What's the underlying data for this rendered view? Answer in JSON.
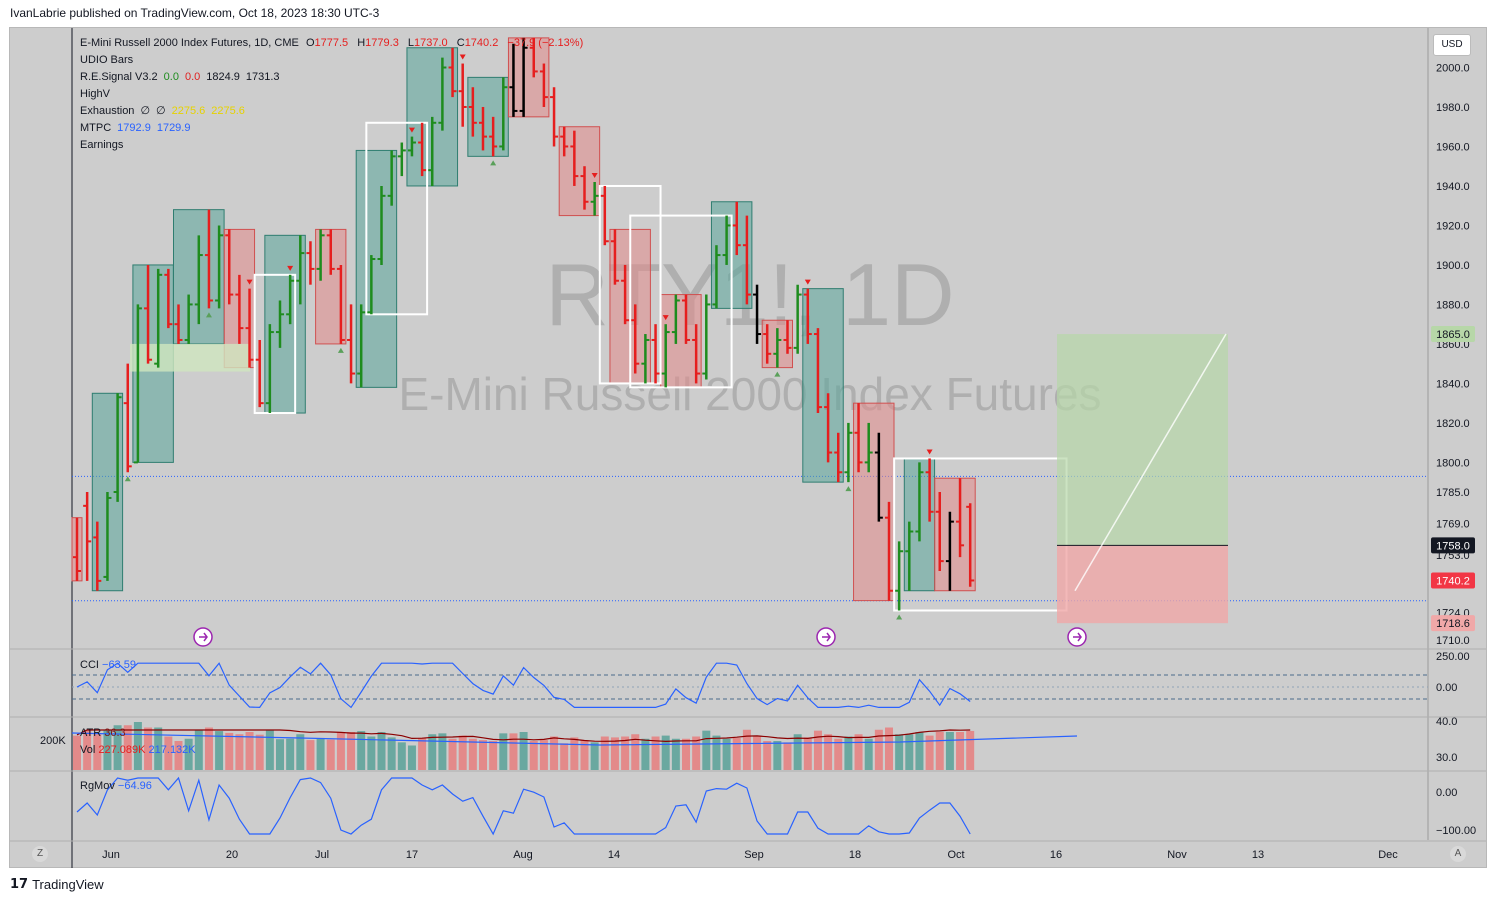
{
  "header": {
    "publisher_line": "IvanLabrie published on TradingView.com, Oct 18, 2023 18:30 UTC-3"
  },
  "footer": {
    "brand": "TradingView",
    "logo_glyph": "17"
  },
  "toolbar": {
    "currency_button": "USD",
    "left_corner": "Z",
    "right_corner": "A"
  },
  "legend": {
    "symbol": "E-Mini Russell 2000 Index Futures, 1D, CME",
    "ohlc": {
      "o_label": "O",
      "o": "1777.5",
      "h_label": "H",
      "h": "1779.3",
      "l_label": "L",
      "l": "1737.0",
      "c_label": "C",
      "c": "1740.2",
      "change": "−37.9 (−2.13%)"
    },
    "indicators": [
      {
        "name": "UDIO Bars",
        "values": []
      },
      {
        "name": "R.E.Signal V3.2",
        "values": [
          {
            "v": "0.0",
            "color": "#1e8c1e"
          },
          {
            "v": "0.0",
            "color": "#e02020"
          },
          {
            "v": "1824.9",
            "color": "#131722"
          },
          {
            "v": "1731.3",
            "color": "#131722"
          }
        ]
      },
      {
        "name": "HighV",
        "values": []
      },
      {
        "name": "Exhaustion",
        "values": [
          {
            "v": "∅",
            "color": "#131722"
          },
          {
            "v": "∅",
            "color": "#131722"
          },
          {
            "v": "2275.6",
            "color": "#e6d200"
          },
          {
            "v": "2275.6",
            "color": "#e6d200"
          }
        ]
      },
      {
        "name": "MTPC",
        "values": [
          {
            "v": "1792.9",
            "color": "#2962ff"
          },
          {
            "v": "1729.9",
            "color": "#2962ff"
          }
        ]
      },
      {
        "name": "Earnings",
        "values": []
      }
    ]
  },
  "watermark": {
    "ticker": "RTY1!, 1D",
    "name": "E-Mini Russell 2000 Index Futures"
  },
  "panes": {
    "cci": {
      "label": "CCI",
      "value": "−63.59",
      "ticks": [
        "250.00",
        "0.00"
      ]
    },
    "atr": {
      "label": "ATR",
      "value": "36.3",
      "ticks": [
        "40.0",
        "30.0"
      ]
    },
    "vol": {
      "label": "Vol",
      "value1": "227.089K",
      "value2": "217.132K",
      "left_tick": "200K"
    },
    "rgmov": {
      "label": "RgMov",
      "value": "−64.96",
      "ticks": [
        "0.00",
        "−100.00"
      ]
    }
  },
  "colors": {
    "up": "#1e8c1e",
    "down": "#e61e1e",
    "neutral": "#000000",
    "green_box": "#5aa59a",
    "red_box": "#e38a8a",
    "price_label": "#f23645"
  },
  "chart_data": {
    "type": "ohlc",
    "symbol": "RTY1!",
    "timeframe": "1D",
    "x_tick_labels": [
      "Jun",
      "20",
      "Jul",
      "17",
      "Aug",
      "14",
      "Sep",
      "18",
      "Oct",
      "16",
      "Nov",
      "13",
      "Dec"
    ],
    "y_tick_labels": [
      "2000.0",
      "1980.0",
      "1960.0",
      "1940.0",
      "1920.0",
      "1900.0",
      "1880.0",
      "1860.0",
      "1840.0",
      "1820.0",
      "1800.0",
      "1785.0",
      "1769.0",
      "1753.0",
      "1724.0",
      "1710.0"
    ],
    "ylim": [
      1706,
      2020
    ],
    "price_labels": [
      {
        "value": "1865.0",
        "bg": "#b7d7a8",
        "fg": "#131722"
      },
      {
        "value": "1758.0",
        "bg": "#131722",
        "fg": "#ffffff"
      },
      {
        "value": "1740.2",
        "bg": "#f23645",
        "fg": "#ffffff"
      },
      {
        "value": "1718.6",
        "bg": "#f0a8a8",
        "fg": "#131722"
      }
    ],
    "bars": [
      [
        1752,
        1772,
        1740,
        1745
      ],
      [
        1778,
        1785,
        1740,
        1760
      ],
      [
        1762,
        1770,
        1735,
        1740
      ],
      [
        1742,
        1785,
        1740,
        1782
      ],
      [
        1785,
        1835,
        1780,
        1833
      ],
      [
        1830,
        1850,
        1795,
        1798
      ],
      [
        1800,
        1880,
        1800,
        1878
      ],
      [
        1878,
        1900,
        1850,
        1852
      ],
      [
        1850,
        1898,
        1848,
        1895
      ],
      [
        1895,
        1898,
        1868,
        1870
      ],
      [
        1870,
        1880,
        1860,
        1862
      ],
      [
        1862,
        1885,
        1860,
        1880
      ],
      [
        1880,
        1915,
        1870,
        1905
      ],
      [
        1905,
        1928,
        1878,
        1882
      ],
      [
        1882,
        1920,
        1878,
        1915
      ],
      [
        1915,
        1918,
        1880,
        1885
      ],
      [
        1885,
        1895,
        1860,
        1868
      ],
      [
        1868,
        1888,
        1848,
        1852
      ],
      [
        1852,
        1862,
        1828,
        1830
      ],
      [
        1830,
        1870,
        1825,
        1866
      ],
      [
        1866,
        1882,
        1858,
        1875
      ],
      [
        1875,
        1895,
        1870,
        1892
      ],
      [
        1892,
        1915,
        1880,
        1906
      ],
      [
        1906,
        1912,
        1890,
        1898
      ],
      [
        1898,
        1918,
        1892,
        1915
      ],
      [
        1915,
        1918,
        1895,
        1898
      ],
      [
        1898,
        1900,
        1860,
        1862
      ],
      [
        1862,
        1880,
        1840,
        1845
      ],
      [
        1845,
        1880,
        1838,
        1876
      ],
      [
        1876,
        1905,
        1875,
        1903
      ],
      [
        1903,
        1940,
        1900,
        1935
      ],
      [
        1935,
        1958,
        1930,
        1955
      ],
      [
        1955,
        1962,
        1945,
        1958
      ],
      [
        1958,
        1965,
        1955,
        1962
      ],
      [
        1962,
        1972,
        1945,
        1948
      ],
      [
        1948,
        1975,
        1940,
        1972
      ],
      [
        1972,
        2005,
        1968,
        2000
      ],
      [
        2000,
        2010,
        1985,
        1988
      ],
      [
        1988,
        2002,
        1970,
        1980
      ],
      [
        1980,
        1990,
        1965,
        1972
      ],
      [
        1972,
        1980,
        1958,
        1965
      ],
      [
        1965,
        1975,
        1955,
        1960
      ],
      [
        1960,
        1995,
        1958,
        1990
      ],
      [
        1990,
        2012,
        1975,
        1978
      ],
      [
        1978,
        2015,
        1975,
        2010
      ],
      [
        2010,
        2015,
        1995,
        1998
      ],
      [
        1998,
        2002,
        1980,
        1985
      ],
      [
        1985,
        1990,
        1960,
        1965
      ],
      [
        1965,
        1970,
        1955,
        1960
      ],
      [
        1960,
        1968,
        1940,
        1945
      ],
      [
        1945,
        1950,
        1928,
        1932
      ],
      [
        1932,
        1942,
        1925,
        1935
      ],
      [
        1935,
        1940,
        1910,
        1912
      ],
      [
        1912,
        1918,
        1890,
        1892
      ],
      [
        1892,
        1900,
        1870,
        1872
      ],
      [
        1872,
        1880,
        1845,
        1850
      ],
      [
        1850,
        1865,
        1840,
        1862
      ],
      [
        1862,
        1870,
        1840,
        1845
      ],
      [
        1845,
        1870,
        1838,
        1866
      ],
      [
        1866,
        1885,
        1860,
        1882
      ],
      [
        1882,
        1885,
        1860,
        1862
      ],
      [
        1862,
        1870,
        1840,
        1845
      ],
      [
        1845,
        1885,
        1842,
        1880
      ],
      [
        1880,
        1910,
        1878,
        1905
      ],
      [
        1905,
        1925,
        1900,
        1920
      ],
      [
        1920,
        1932,
        1905,
        1910
      ],
      [
        1910,
        1925,
        1880,
        1885
      ],
      [
        1885,
        1890,
        1860,
        1865
      ],
      [
        1865,
        1870,
        1850,
        1855
      ],
      [
        1855,
        1868,
        1848,
        1862
      ],
      [
        1862,
        1872,
        1855,
        1858
      ],
      [
        1858,
        1890,
        1855,
        1885
      ],
      [
        1885,
        1888,
        1860,
        1865
      ],
      [
        1865,
        1868,
        1825,
        1828
      ],
      [
        1828,
        1835,
        1800,
        1805
      ],
      [
        1805,
        1815,
        1790,
        1795
      ],
      [
        1795,
        1820,
        1790,
        1815
      ],
      [
        1815,
        1830,
        1795,
        1800
      ],
      [
        1800,
        1820,
        1795,
        1805
      ],
      [
        1805,
        1815,
        1770,
        1772
      ],
      [
        1772,
        1780,
        1730,
        1735
      ],
      [
        1735,
        1760,
        1725,
        1755
      ],
      [
        1755,
        1770,
        1735,
        1765
      ],
      [
        1765,
        1800,
        1760,
        1795
      ],
      [
        1795,
        1802,
        1770,
        1775
      ],
      [
        1775,
        1785,
        1745,
        1750
      ],
      [
        1750,
        1775,
        1735,
        1770
      ],
      [
        1770,
        1792,
        1752,
        1758
      ],
      [
        1777.5,
        1779.3,
        1737.0,
        1740.2
      ]
    ]
  }
}
